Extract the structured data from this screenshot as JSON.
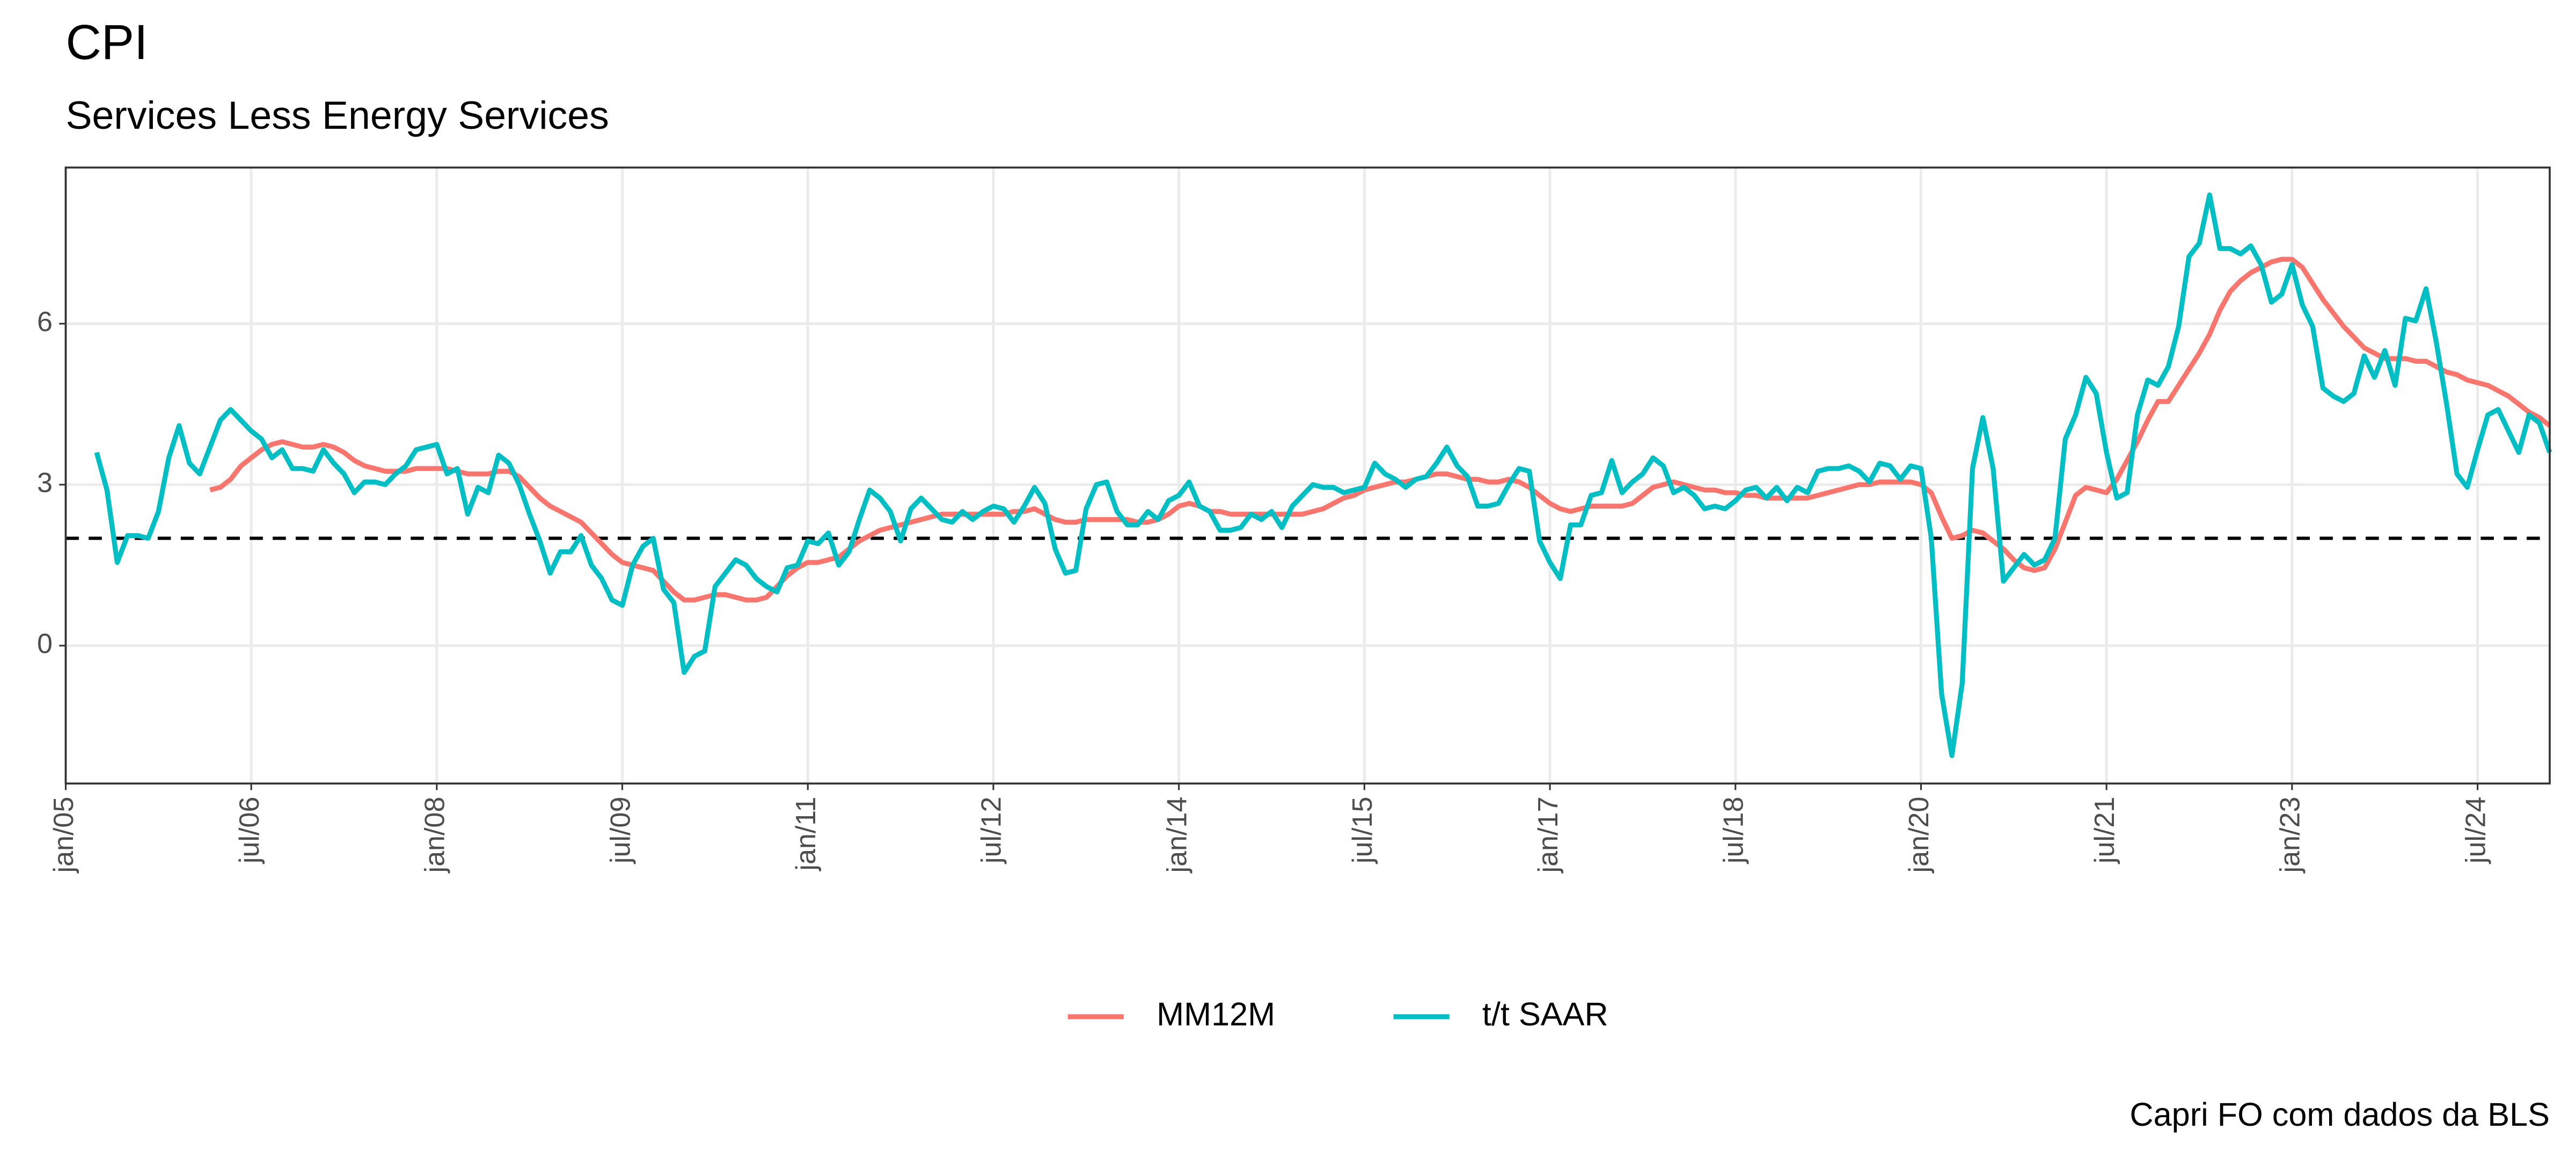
{
  "chart_data": {
    "type": "line",
    "title": "CPI",
    "subtitle": "Services Less Energy Services",
    "caption": "Capri FO com dados da BLS",
    "hline": 2,
    "xlim": [
      "2005-01",
      "2025-02"
    ],
    "xticks": [
      {
        "value": "2005-01",
        "label": "jan/05"
      },
      {
        "value": "2006-07",
        "label": "jul/06"
      },
      {
        "value": "2008-01",
        "label": "jan/08"
      },
      {
        "value": "2009-07",
        "label": "jul/09"
      },
      {
        "value": "2011-01",
        "label": "jan/11"
      },
      {
        "value": "2012-07",
        "label": "jul/12"
      },
      {
        "value": "2014-01",
        "label": "jan/14"
      },
      {
        "value": "2015-07",
        "label": "jul/15"
      },
      {
        "value": "2017-01",
        "label": "jan/17"
      },
      {
        "value": "2018-07",
        "label": "jul/18"
      },
      {
        "value": "2020-01",
        "label": "jan/20"
      },
      {
        "value": "2021-07",
        "label": "jul/21"
      },
      {
        "value": "2023-01",
        "label": "jan/23"
      },
      {
        "value": "2024-07",
        "label": "jul/24"
      }
    ],
    "ylim": [
      -2.57,
      8.91
    ],
    "yticks": [
      0,
      3,
      6
    ],
    "grid": true,
    "legend": "bottom",
    "x": [
      "2005-04",
      "2005-05",
      "2005-06",
      "2005-07",
      "2005-08",
      "2005-09",
      "2005-10",
      "2005-11",
      "2005-12",
      "2006-01",
      "2006-02",
      "2006-03",
      "2006-04",
      "2006-05",
      "2006-06",
      "2006-07",
      "2006-08",
      "2006-09",
      "2006-10",
      "2006-11",
      "2006-12",
      "2007-01",
      "2007-02",
      "2007-03",
      "2007-04",
      "2007-05",
      "2007-06",
      "2007-07",
      "2007-08",
      "2007-09",
      "2007-10",
      "2007-11",
      "2007-12",
      "2008-01",
      "2008-02",
      "2008-03",
      "2008-04",
      "2008-05",
      "2008-06",
      "2008-07",
      "2008-08",
      "2008-09",
      "2008-10",
      "2008-11",
      "2008-12",
      "2009-01",
      "2009-02",
      "2009-03",
      "2009-04",
      "2009-05",
      "2009-06",
      "2009-07",
      "2009-08",
      "2009-09",
      "2009-10",
      "2009-11",
      "2009-12",
      "2010-01",
      "2010-02",
      "2010-03",
      "2010-04",
      "2010-05",
      "2010-06",
      "2010-07",
      "2010-08",
      "2010-09",
      "2010-10",
      "2010-11",
      "2010-12",
      "2011-01",
      "2011-02",
      "2011-03",
      "2011-04",
      "2011-05",
      "2011-06",
      "2011-07",
      "2011-08",
      "2011-09",
      "2011-10",
      "2011-11",
      "2011-12",
      "2012-01",
      "2012-02",
      "2012-03",
      "2012-04",
      "2012-05",
      "2012-06",
      "2012-07",
      "2012-08",
      "2012-09",
      "2012-10",
      "2012-11",
      "2012-12",
      "2013-01",
      "2013-02",
      "2013-03",
      "2013-04",
      "2013-05",
      "2013-06",
      "2013-07",
      "2013-08",
      "2013-09",
      "2013-10",
      "2013-11",
      "2013-12",
      "2014-01",
      "2014-02",
      "2014-03",
      "2014-04",
      "2014-05",
      "2014-06",
      "2014-07",
      "2014-08",
      "2014-09",
      "2014-10",
      "2014-11",
      "2014-12",
      "2015-01",
      "2015-02",
      "2015-03",
      "2015-04",
      "2015-05",
      "2015-06",
      "2015-07",
      "2015-08",
      "2015-09",
      "2015-10",
      "2015-11",
      "2015-12",
      "2016-01",
      "2016-02",
      "2016-03",
      "2016-04",
      "2016-05",
      "2016-06",
      "2016-07",
      "2016-08",
      "2016-09",
      "2016-10",
      "2016-11",
      "2016-12",
      "2017-01",
      "2017-02",
      "2017-03",
      "2017-04",
      "2017-05",
      "2017-06",
      "2017-07",
      "2017-08",
      "2017-09",
      "2017-10",
      "2017-11",
      "2017-12",
      "2018-01",
      "2018-02",
      "2018-03",
      "2018-04",
      "2018-05",
      "2018-06",
      "2018-07",
      "2018-08",
      "2018-09",
      "2018-10",
      "2018-11",
      "2018-12",
      "2019-01",
      "2019-02",
      "2019-03",
      "2019-04",
      "2019-05",
      "2019-06",
      "2019-07",
      "2019-08",
      "2019-09",
      "2019-10",
      "2019-11",
      "2019-12",
      "2020-01",
      "2020-02",
      "2020-03",
      "2020-04",
      "2020-05",
      "2020-06",
      "2020-07",
      "2020-08",
      "2020-09",
      "2020-10",
      "2020-11",
      "2020-12",
      "2021-01",
      "2021-02",
      "2021-03",
      "2021-04",
      "2021-05",
      "2021-06",
      "2021-07",
      "2021-08",
      "2021-09",
      "2021-10",
      "2021-11",
      "2021-12",
      "2022-01",
      "2022-02",
      "2022-03",
      "2022-04",
      "2022-05",
      "2022-06",
      "2022-07",
      "2022-08",
      "2022-09",
      "2022-10",
      "2022-11",
      "2022-12",
      "2023-01",
      "2023-02",
      "2023-03",
      "2023-04",
      "2023-05",
      "2023-06",
      "2023-07",
      "2023-08",
      "2023-09",
      "2023-10",
      "2023-11",
      "2023-12",
      "2024-01",
      "2024-02",
      "2024-03",
      "2024-04",
      "2024-05",
      "2024-06",
      "2024-07",
      "2024-08",
      "2024-09",
      "2024-10",
      "2024-11",
      "2024-12",
      "2025-01",
      "2025-02"
    ],
    "series": [
      {
        "name": "MM12M",
        "color": "#F8766D",
        "values": [
          null,
          null,
          null,
          null,
          null,
          null,
          null,
          null,
          null,
          null,
          null,
          2.9,
          2.95,
          3.1,
          3.35,
          3.5,
          3.65,
          3.75,
          3.8,
          3.75,
          3.7,
          3.7,
          3.75,
          3.7,
          3.6,
          3.45,
          3.35,
          3.3,
          3.25,
          3.25,
          3.25,
          3.3,
          3.3,
          3.3,
          3.3,
          3.25,
          3.2,
          3.2,
          3.2,
          3.25,
          3.25,
          3.15,
          2.95,
          2.75,
          2.6,
          2.5,
          2.4,
          2.3,
          2.1,
          1.9,
          1.7,
          1.55,
          1.5,
          1.45,
          1.4,
          1.2,
          1.0,
          0.85,
          0.85,
          0.9,
          0.95,
          0.95,
          0.9,
          0.85,
          0.85,
          0.9,
          1.1,
          1.3,
          1.45,
          1.55,
          1.55,
          1.6,
          1.65,
          1.8,
          1.95,
          2.05,
          2.15,
          2.2,
          2.25,
          2.3,
          2.35,
          2.4,
          2.45,
          2.45,
          2.45,
          2.45,
          2.45,
          2.45,
          2.45,
          2.5,
          2.5,
          2.55,
          2.45,
          2.35,
          2.3,
          2.3,
          2.35,
          2.35,
          2.35,
          2.35,
          2.35,
          2.3,
          2.3,
          2.35,
          2.45,
          2.6,
          2.65,
          2.6,
          2.5,
          2.5,
          2.45,
          2.45,
          2.45,
          2.45,
          2.45,
          2.45,
          2.45,
          2.45,
          2.5,
          2.55,
          2.65,
          2.75,
          2.8,
          2.9,
          2.95,
          3.0,
          3.05,
          3.05,
          3.1,
          3.15,
          3.2,
          3.2,
          3.15,
          3.1,
          3.1,
          3.05,
          3.05,
          3.1,
          3.05,
          2.95,
          2.8,
          2.65,
          2.55,
          2.5,
          2.55,
          2.6,
          2.6,
          2.6,
          2.6,
          2.65,
          2.8,
          2.95,
          3.0,
          3.05,
          3.0,
          2.95,
          2.9,
          2.9,
          2.85,
          2.85,
          2.8,
          2.8,
          2.75,
          2.75,
          2.75,
          2.75,
          2.75,
          2.8,
          2.85,
          2.9,
          2.95,
          3.0,
          3.0,
          3.05,
          3.05,
          3.05,
          3.05,
          3.0,
          2.85,
          2.4,
          2.0,
          2.05,
          2.15,
          2.1,
          1.95,
          1.8,
          1.6,
          1.45,
          1.4,
          1.45,
          1.8,
          2.3,
          2.8,
          2.95,
          2.9,
          2.85,
          3.1,
          3.45,
          3.8,
          4.2,
          4.55,
          4.55,
          4.85,
          5.15,
          5.45,
          5.8,
          6.25,
          6.6,
          6.8,
          6.95,
          7.05,
          7.15,
          7.2,
          7.2,
          7.05,
          6.75,
          6.45,
          6.2,
          5.95,
          5.75,
          5.55,
          5.45,
          5.35,
          5.35,
          5.35,
          5.3,
          5.3,
          5.2,
          5.1,
          5.05,
          4.95,
          4.9,
          4.85,
          4.75,
          4.65,
          4.5,
          4.35,
          4.25,
          4.1
        ]
      },
      {
        "name": "t/t SAAR",
        "color": "#00BFC4",
        "values": [
          3.6,
          2.9,
          1.55,
          2.05,
          2.05,
          2.0,
          2.5,
          3.5,
          4.1,
          3.4,
          3.2,
          3.7,
          4.2,
          4.4,
          4.2,
          4.0,
          3.85,
          3.5,
          3.65,
          3.3,
          3.3,
          3.25,
          3.65,
          3.4,
          3.2,
          2.85,
          3.05,
          3.05,
          3.0,
          3.2,
          3.35,
          3.65,
          3.7,
          3.75,
          3.2,
          3.3,
          2.45,
          2.95,
          2.85,
          3.55,
          3.4,
          3.0,
          2.45,
          1.95,
          1.35,
          1.75,
          1.75,
          2.05,
          1.5,
          1.25,
          0.85,
          0.75,
          1.5,
          1.85,
          2.0,
          1.05,
          0.8,
          -0.5,
          -0.2,
          -0.1,
          1.1,
          1.35,
          1.6,
          1.5,
          1.25,
          1.1,
          1.0,
          1.45,
          1.5,
          1.95,
          1.9,
          2.1,
          1.5,
          1.75,
          2.35,
          2.9,
          2.75,
          2.5,
          1.95,
          2.55,
          2.75,
          2.55,
          2.35,
          2.3,
          2.5,
          2.35,
          2.5,
          2.6,
          2.55,
          2.3,
          2.6,
          2.95,
          2.65,
          1.8,
          1.35,
          1.4,
          2.55,
          3.0,
          3.05,
          2.5,
          2.25,
          2.25,
          2.5,
          2.35,
          2.7,
          2.8,
          3.05,
          2.6,
          2.5,
          2.15,
          2.15,
          2.2,
          2.45,
          2.35,
          2.5,
          2.2,
          2.6,
          2.8,
          3.0,
          2.95,
          2.95,
          2.85,
          2.9,
          2.95,
          3.4,
          3.2,
          3.1,
          2.95,
          3.1,
          3.15,
          3.4,
          3.7,
          3.35,
          3.15,
          2.6,
          2.6,
          2.65,
          3.0,
          3.3,
          3.25,
          1.95,
          1.55,
          1.25,
          2.25,
          2.25,
          2.8,
          2.85,
          3.45,
          2.85,
          3.05,
          3.2,
          3.5,
          3.35,
          2.85,
          2.95,
          2.8,
          2.55,
          2.6,
          2.55,
          2.7,
          2.9,
          2.95,
          2.75,
          2.95,
          2.7,
          2.95,
          2.85,
          3.25,
          3.3,
          3.3,
          3.35,
          3.25,
          3.05,
          3.4,
          3.35,
          3.1,
          3.35,
          3.3,
          2.0,
          -0.9,
          -2.05,
          -0.7,
          3.3,
          4.25,
          3.3,
          1.2,
          1.45,
          1.7,
          1.5,
          1.6,
          2.0,
          3.85,
          4.3,
          5.0,
          4.7,
          3.6,
          2.75,
          2.85,
          4.3,
          4.95,
          4.85,
          5.2,
          5.95,
          7.25,
          7.5,
          8.4,
          7.4,
          7.4,
          7.3,
          7.45,
          7.1,
          6.4,
          6.55,
          7.1,
          6.35,
          5.95,
          4.8,
          4.65,
          4.55,
          4.7,
          5.4,
          5.0,
          5.5,
          4.85,
          6.1,
          6.05,
          6.65,
          5.65,
          4.5,
          3.2,
          2.95,
          3.65,
          4.3,
          4.4,
          4.0,
          3.6,
          4.3,
          4.15,
          3.6
        ]
      }
    ]
  }
}
